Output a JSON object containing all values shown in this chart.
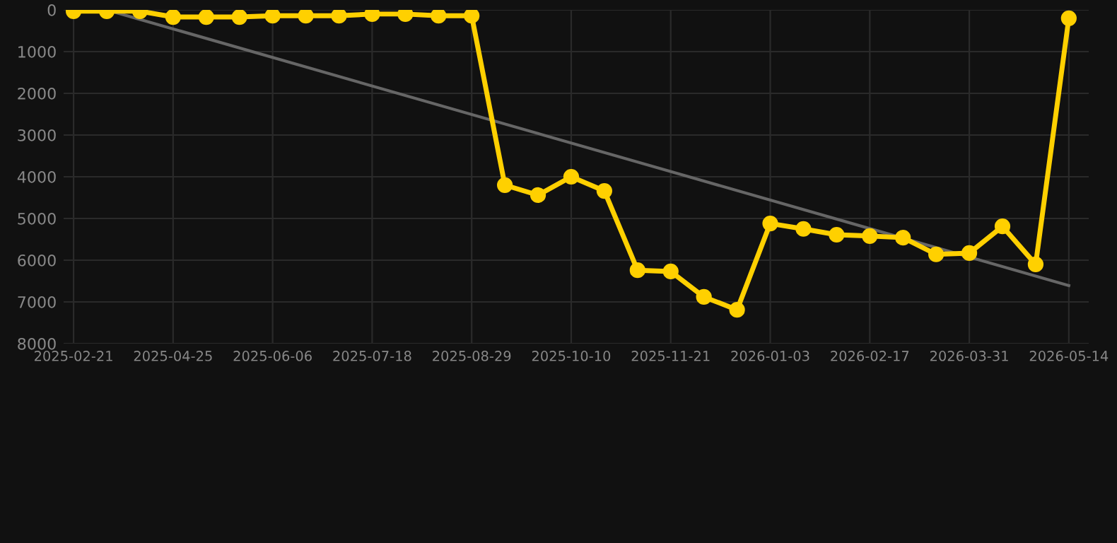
{
  "chart_data": {
    "type": "line",
    "categories": [
      "2025-02-21",
      null,
      null,
      "2025-04-25",
      null,
      null,
      "2025-06-06",
      null,
      null,
      "2025-07-18",
      null,
      null,
      "2025-08-29",
      null,
      null,
      "2025-10-10",
      null,
      null,
      "2025-11-21",
      null,
      null,
      "2026-01-03",
      null,
      null,
      "2026-02-17",
      null,
      null,
      "2026-03-31",
      null,
      null,
      "2026-05-14"
    ],
    "series": [
      {
        "color": "#ffd000",
        "marker": "circle",
        "values": [
          30,
          30,
          30,
          170,
          170,
          170,
          140,
          140,
          140,
          100,
          100,
          140,
          140,
          4200,
          4440,
          4000,
          4340,
          6240,
          6270,
          6880,
          7190,
          5120,
          5250,
          5390,
          5420,
          5460,
          5860,
          5830,
          5190,
          6100,
          200
        ]
      },
      {
        "color": "#666666",
        "marker": "none",
        "values": [
          null,
          0,
          null,
          null,
          null,
          null,
          null,
          null,
          null,
          null,
          null,
          null,
          null,
          null,
          null,
          null,
          null,
          null,
          null,
          null,
          null,
          null,
          null,
          null,
          null,
          null,
          null,
          null,
          null,
          null,
          6610
        ]
      }
    ],
    "ylim": [
      8000,
      0
    ],
    "yticks": [
      0,
      1000,
      2000,
      3000,
      4000,
      5000,
      6000,
      7000,
      8000
    ],
    "grid": true
  }
}
